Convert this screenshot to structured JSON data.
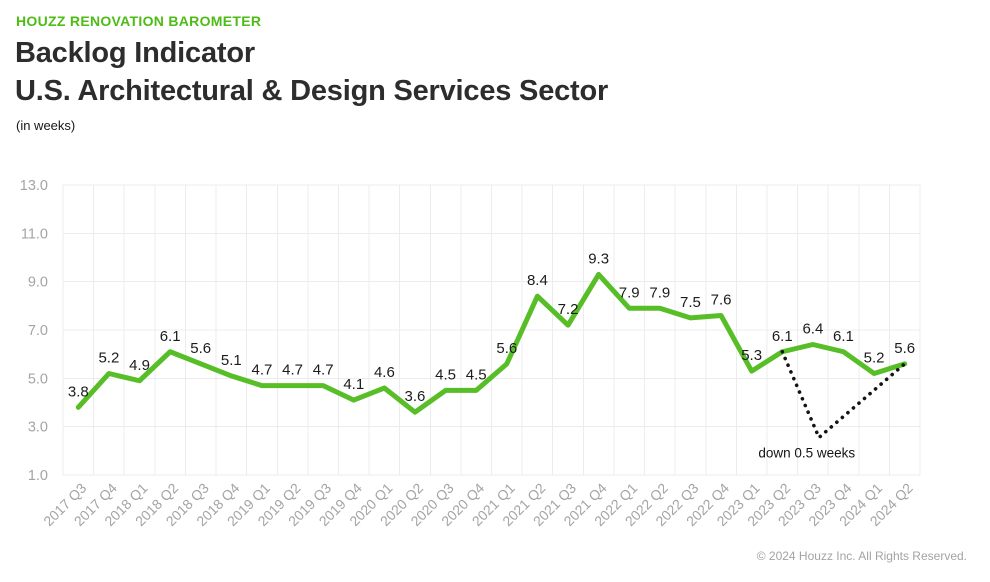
{
  "header": {
    "eyebrow": "HOUZZ RENOVATION BAROMETER",
    "title_line1": "Backlog Indicator",
    "title_line2": "U.S. Architectural & Design Services Sector",
    "units": "(in weeks)"
  },
  "footer": {
    "copyright": "© 2024 Houzz Inc. All Rights Reserved."
  },
  "colors": {
    "brand_green": "#4dbc15",
    "title_color": "#2d2d2d",
    "footer_color": "#a3a3a3"
  },
  "chart_data": {
    "type": "line",
    "title": "Backlog Indicator — U.S. Architectural & Design Services Sector",
    "xlabel": "",
    "ylabel": "weeks",
    "categories": [
      "2017 Q3",
      "2017 Q4",
      "2018 Q1",
      "2018 Q2",
      "2018 Q3",
      "2018 Q4",
      "2019 Q1",
      "2019 Q2",
      "2019 Q3",
      "2019 Q4",
      "2020 Q1",
      "2020 Q2",
      "2020 Q3",
      "2020 Q4",
      "2021 Q1",
      "2021 Q2",
      "2021 Q3",
      "2021 Q4",
      "2022 Q1",
      "2022 Q2",
      "2022 Q3",
      "2022 Q4",
      "2023 Q1",
      "2023 Q2",
      "2023 Q3",
      "2023 Q4",
      "2024 Q1",
      "2024 Q2"
    ],
    "values": [
      3.8,
      5.2,
      4.9,
      6.1,
      5.6,
      5.1,
      4.7,
      4.7,
      4.7,
      4.1,
      4.6,
      3.6,
      4.5,
      4.5,
      5.6,
      8.4,
      7.2,
      9.3,
      7.9,
      7.9,
      7.5,
      7.6,
      5.3,
      6.1,
      6.4,
      6.1,
      5.2,
      5.6
    ],
    "ylim": [
      1.0,
      13.0
    ],
    "yticks": [
      13.0,
      11.0,
      9.0,
      7.0,
      5.0,
      3.0,
      1.0
    ],
    "grid": true,
    "legend": "none",
    "line_color": "#57be27",
    "grid_color": "#ececec",
    "axis_text_color": "#a4a4a4",
    "data_label_color": "#1c1c1c",
    "annotation": {
      "label": "down 0.5 weeks",
      "color": "#141414",
      "style": "dotted",
      "from_index": 23,
      "to_index": 27,
      "vertex": {
        "index": 24.2,
        "value": 2.55
      },
      "label_pos": {
        "index": 23.8,
        "value": 1.72
      }
    }
  }
}
